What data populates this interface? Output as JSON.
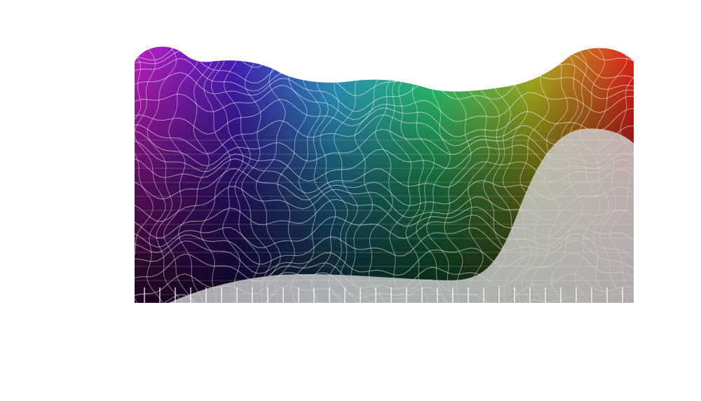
{
  "artwork": {
    "subject": "rainbow-wireframe-terrain",
    "background_color": "#ffffff",
    "base_color": "#000000",
    "spectrum_colors": [
      "#c21fc4",
      "#4a1fc0",
      "#2fa8d8",
      "#2fd87a",
      "#b8c020",
      "#e8251e"
    ],
    "overlay_color": "#c8c8c8",
    "tick_color": "#ffffff"
  }
}
